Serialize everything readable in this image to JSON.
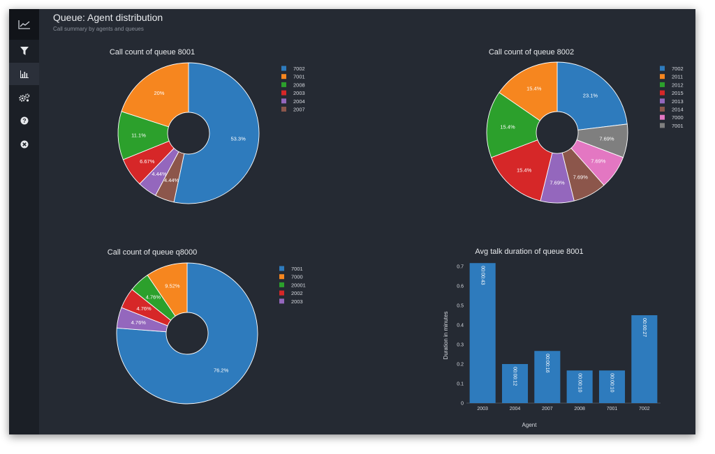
{
  "header": {
    "title": "Queue: Agent distribution",
    "subtitle": "Call summary by agents and queues"
  },
  "sidebar": {
    "items": [
      {
        "icon": "trend-chart-icon"
      },
      {
        "icon": "filter-icon"
      },
      {
        "icon": "bar-chart-icon"
      },
      {
        "icon": "settings-gears-icon"
      },
      {
        "icon": "help-icon"
      },
      {
        "icon": "close-icon"
      }
    ]
  },
  "colors": {
    "blue": "#2e7bbd",
    "orange": "#f6861f",
    "green": "#2ca02c",
    "red": "#d62728",
    "purple": "#9467bd",
    "brown": "#8c564b",
    "pink": "#e377c2",
    "gray": "#7f7f7f"
  },
  "chart_data": [
    {
      "type": "pie",
      "title": "Call count of queue 8001",
      "legend": [
        "7002",
        "7001",
        "2008",
        "2003",
        "2004",
        "2007"
      ],
      "slices": [
        {
          "label": "7002",
          "value": 53.3,
          "text": "53.3%"
        },
        {
          "label": "2007",
          "value": 4.44,
          "text": "4.44%"
        },
        {
          "label": "2004",
          "value": 4.44,
          "text": "4.44%"
        },
        {
          "label": "2003",
          "value": 6.67,
          "text": "6.67%"
        },
        {
          "label": "2008",
          "value": 11.1,
          "text": "11.1%"
        },
        {
          "label": "7001",
          "value": 20,
          "text": "20%"
        }
      ]
    },
    {
      "type": "pie",
      "title": "Call count of queue 8002",
      "legend": [
        "7002",
        "2011",
        "2012",
        "2015",
        "2013",
        "2014",
        "7000",
        "7001"
      ],
      "slices": [
        {
          "label": "7002",
          "value": 23.1,
          "text": "23.1%"
        },
        {
          "label": "7001",
          "value": 7.69,
          "text": "7.69%"
        },
        {
          "label": "7000",
          "value": 7.69,
          "text": "7.69%"
        },
        {
          "label": "2014",
          "value": 7.69,
          "text": "7.69%"
        },
        {
          "label": "2013",
          "value": 7.69,
          "text": "7.69%"
        },
        {
          "label": "2015",
          "value": 15.4,
          "text": "15.4%"
        },
        {
          "label": "2012",
          "value": 15.4,
          "text": "15.4%"
        },
        {
          "label": "2011",
          "value": 15.4,
          "text": "15.4%"
        }
      ]
    },
    {
      "type": "pie",
      "title": "Call count of queue q8000",
      "legend": [
        "7001",
        "7000",
        "20001",
        "2002",
        "2003"
      ],
      "slices": [
        {
          "label": "7001",
          "value": 76.2,
          "text": "76.2%"
        },
        {
          "label": "2003",
          "value": 4.76,
          "text": "4.76%"
        },
        {
          "label": "2002",
          "value": 4.76,
          "text": "4.76%"
        },
        {
          "label": "20001",
          "value": 4.76,
          "text": "4.76%"
        },
        {
          "label": "7000",
          "value": 9.52,
          "text": "9.52%"
        }
      ]
    },
    {
      "type": "bar",
      "title": "Avg talk duration of queue 8001",
      "xlabel": "Agent",
      "ylabel": "Duration in minutes",
      "categories": [
        "2003",
        "2004",
        "2007",
        "2008",
        "7001",
        "7002"
      ],
      "values": [
        0.717,
        0.2,
        0.267,
        0.167,
        0.167,
        0.45
      ],
      "bar_labels": [
        "00:00:43",
        "00:00:12",
        "00:00:16",
        "00:00:10",
        "00:00:10",
        "00:00:27"
      ],
      "ylim": [
        0,
        0.75
      ],
      "yticks": [
        "0",
        "0.1",
        "0.2",
        "0.3",
        "0.4",
        "0.5",
        "0.6",
        "0.7"
      ]
    }
  ]
}
